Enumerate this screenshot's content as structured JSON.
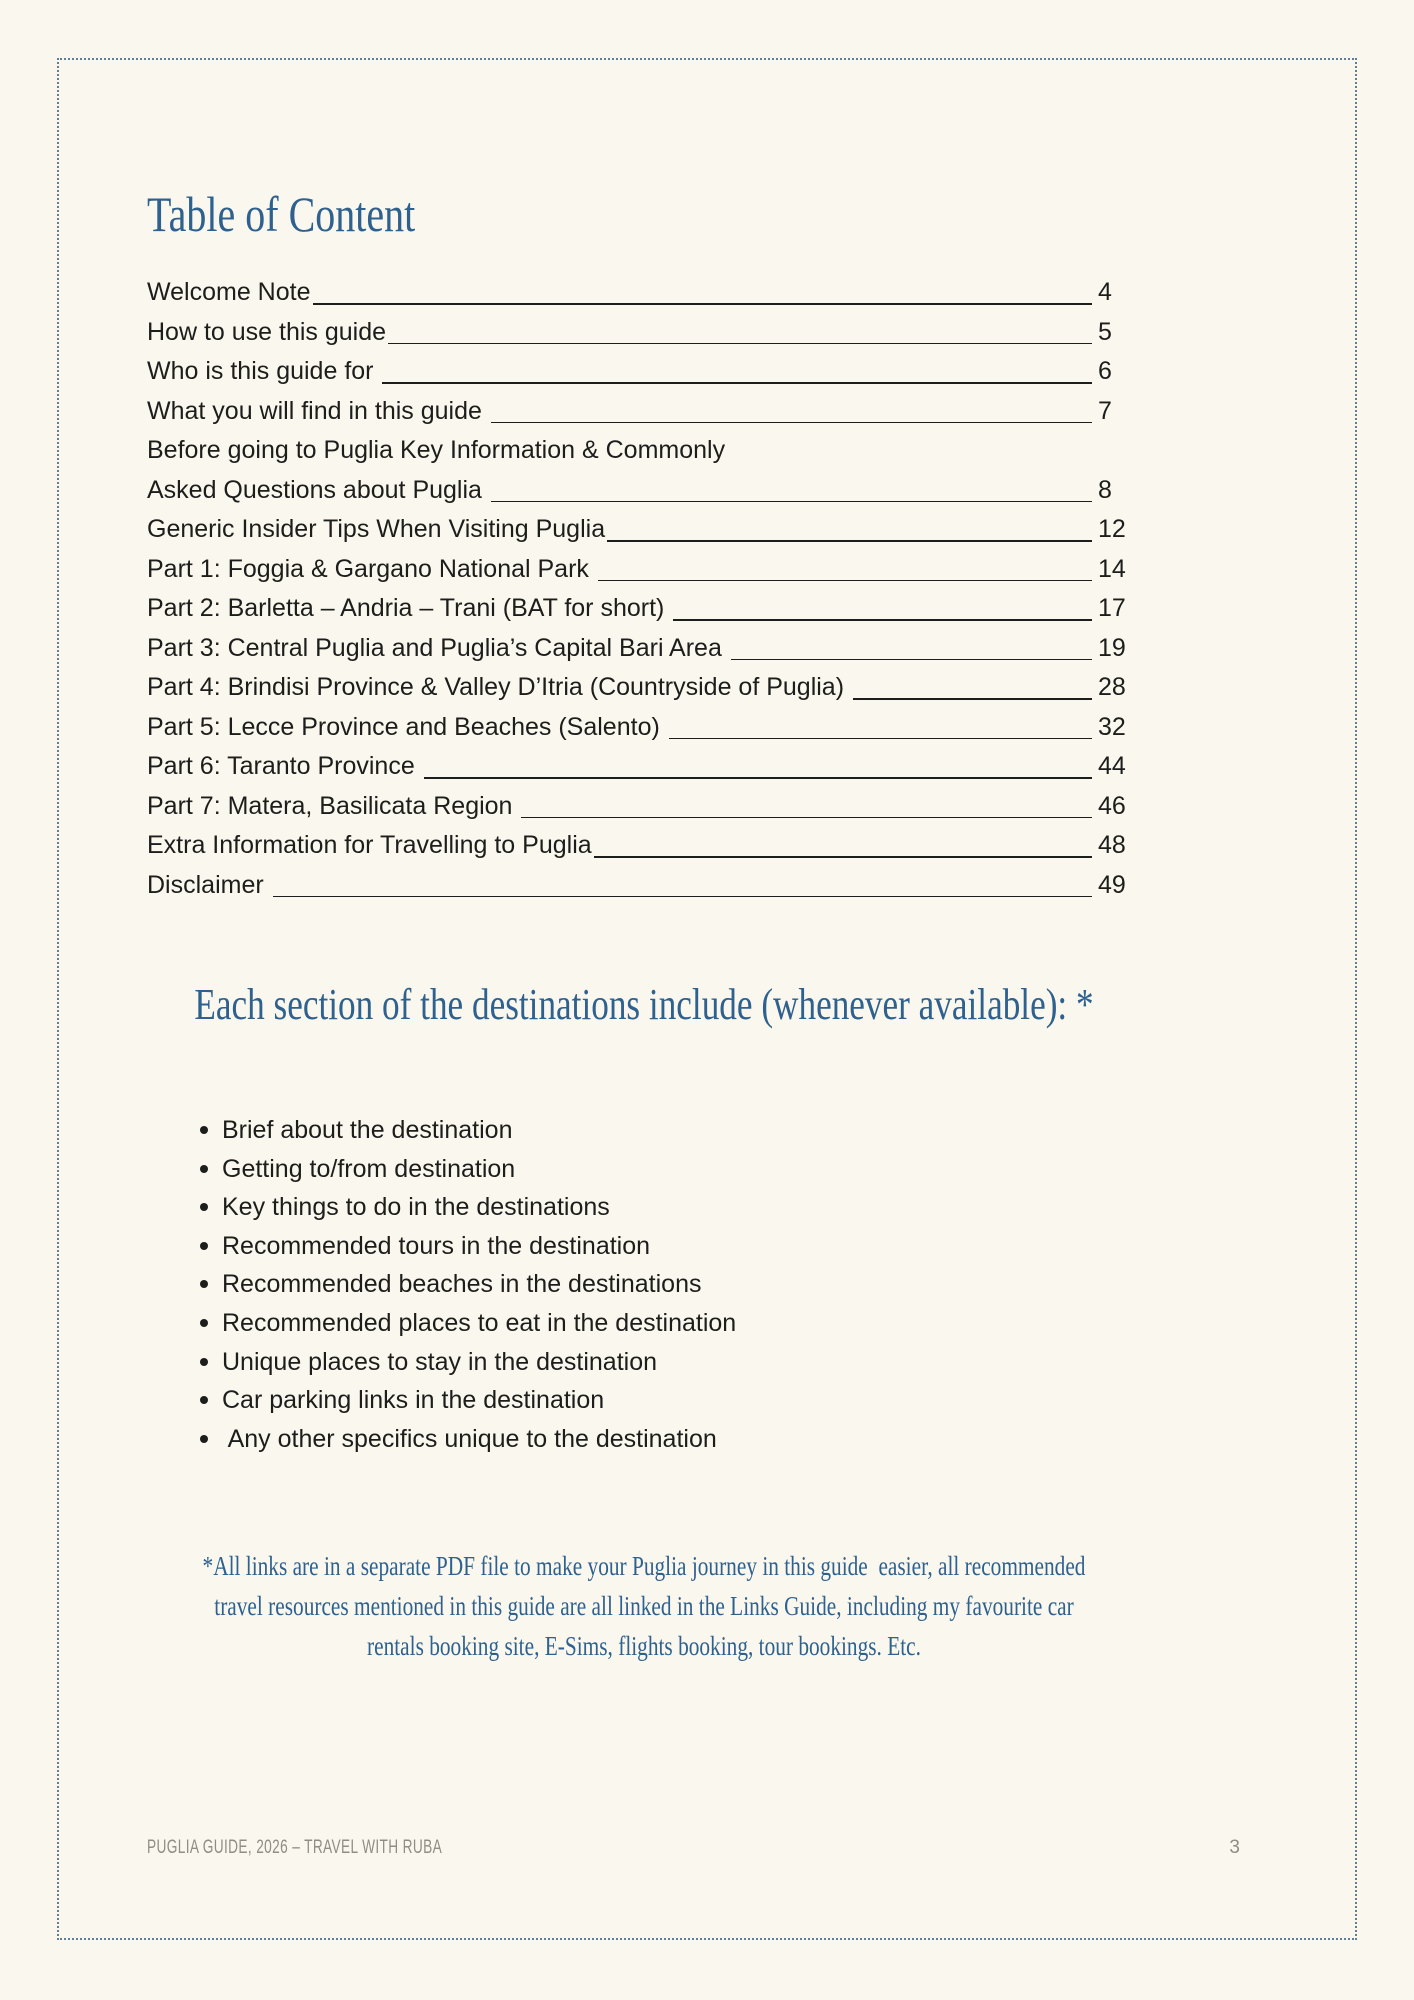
{
  "document": {
    "title": "Table of Content",
    "toc": {
      "entries": [
        {
          "label": "Welcome Note",
          "page": "4"
        },
        {
          "label": "How to use this guide",
          "page": "5"
        },
        {
          "label": "Who is this guide for ",
          "page": "6"
        },
        {
          "label": "What you will find in this guide ",
          "page": "7"
        },
        {
          "line1": "Before going to Puglia Key Information & Commonly",
          "label": "Asked Questions about Puglia ",
          "page": "8"
        },
        {
          "label": "Generic Insider Tips When Visiting Puglia",
          "page": "12"
        },
        {
          "label": "Part 1: Foggia & Gargano National Park ",
          "page": "14"
        },
        {
          "label": "Part 2: Barletta – Andria – Trani (BAT for short) ",
          "page": "17"
        },
        {
          "label": "Part 3: Central Puglia and Puglia’s Capital Bari Area ",
          "page": "19"
        },
        {
          "label": "Part 4: Brindisi Province & Valley D’Itria (Countryside of Puglia) ",
          "page": "28"
        },
        {
          "label": "Part 5: Lecce Province and Beaches (Salento) ",
          "page": "32"
        },
        {
          "label": "Part 6: Taranto Province ",
          "page": "44"
        },
        {
          "label": "Part 7: Matera, Basilicata Region ",
          "page": "46"
        },
        {
          "label": "Extra Information for Travelling to Puglia",
          "page": "48"
        },
        {
          "label": "Disclaimer ",
          "page": "49"
        }
      ]
    },
    "section_heading": "Each section of the destinations include (whenever available): *",
    "bullets": [
      "Brief about the destination",
      "Getting to/from destination",
      "Key things to do in the destinations",
      "Recommended tours in the destination",
      "Recommended beaches in the destinations",
      "Recommended places to eat in the destination",
      "Unique places to stay in the destination",
      "Car parking links in the destination",
      " Any other specifics unique to the destination"
    ],
    "footnote": {
      "lines": [
        "*All links are in a separate PDF file to make your Puglia journey in this guide  easier, all recommended",
        "travel resources mentioned in this guide are all linked in the Links Guide, including my favourite car",
        "rentals booking site, E-Sims, flights booking, tour bookings. Etc."
      ]
    },
    "footer": {
      "left_text": "PUGLIA GUIDE, 2026 – TRAVEL WITH RUBA",
      "page_number": "3"
    }
  },
  "colors": {
    "background": "#faf8ee",
    "accent_blue": "#2f618f",
    "body_text": "#1d1d1b",
    "footer_gray": "#8f8d84",
    "border_blue": "#5e7e9b"
  }
}
